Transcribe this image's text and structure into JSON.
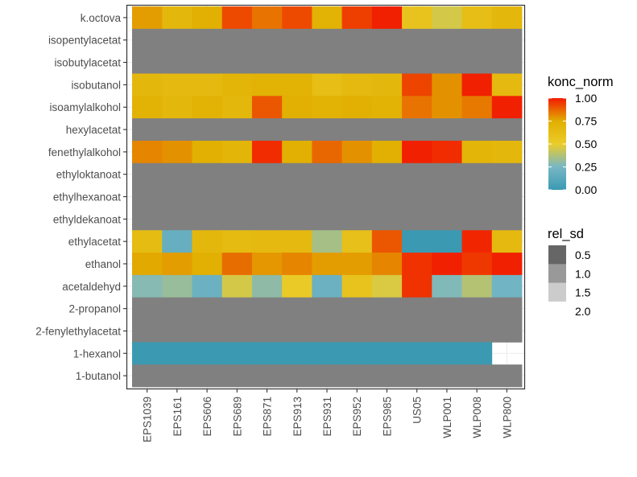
{
  "chart_data": {
    "type": "heatmap",
    "title": "",
    "xlabel": "",
    "ylabel": "",
    "x_categories": [
      "EPS1039",
      "EPS161",
      "EPS606",
      "EPS689",
      "EPS871",
      "EPS913",
      "EPS931",
      "EPS952",
      "EPS985",
      "US05",
      "WLP001",
      "WLP008",
      "WLP800"
    ],
    "y_categories": [
      "k.octova",
      "isopentylacetat",
      "isobutylacetat",
      "isobutanol",
      "isoamylalkohol",
      "hexylacetat",
      "fenethylalkohol",
      "ethyloktanoat",
      "ethylhexanoat",
      "ethyldekanoat",
      "ethylacetat",
      "ethanol",
      "acetaldehyd",
      "2-propanol",
      "2-fenylethylacetat",
      "1-hexanol",
      "1-butanol"
    ],
    "na_color": "#808080",
    "konc_norm": [
      [
        0.78,
        0.68,
        0.74,
        0.92,
        0.85,
        0.92,
        0.72,
        0.94,
        0.99,
        0.58,
        0.45,
        0.62,
        0.68
      ],
      [
        null,
        null,
        null,
        null,
        null,
        null,
        null,
        null,
        null,
        null,
        null,
        null,
        null
      ],
      [
        null,
        null,
        null,
        null,
        null,
        null,
        null,
        null,
        null,
        null,
        null,
        null,
        null
      ],
      [
        0.68,
        0.66,
        0.66,
        0.7,
        0.72,
        0.72,
        0.62,
        0.66,
        0.68,
        0.93,
        0.8,
        0.99,
        0.66
      ],
      [
        0.72,
        0.68,
        0.72,
        0.68,
        0.9,
        0.74,
        0.72,
        0.74,
        0.72,
        0.85,
        0.8,
        0.84,
        0.99
      ],
      [
        null,
        null,
        null,
        null,
        null,
        null,
        null,
        null,
        null,
        null,
        null,
        null,
        null
      ],
      [
        0.82,
        0.8,
        0.74,
        0.7,
        0.97,
        0.74,
        0.87,
        0.8,
        0.74,
        0.99,
        0.97,
        0.7,
        0.68
      ],
      [
        null,
        null,
        null,
        null,
        null,
        null,
        null,
        null,
        null,
        null,
        null,
        null,
        null
      ],
      [
        null,
        null,
        null,
        null,
        null,
        null,
        null,
        null,
        null,
        null,
        null,
        null,
        null
      ],
      [
        null,
        null,
        null,
        null,
        null,
        null,
        null,
        null,
        null,
        null,
        null,
        null,
        null
      ],
      [
        0.64,
        0.18,
        0.68,
        0.65,
        0.66,
        0.66,
        0.35,
        0.6,
        0.9,
        0.0,
        0.0,
        0.98,
        0.66
      ],
      [
        0.76,
        0.78,
        0.74,
        0.86,
        0.79,
        0.82,
        0.78,
        0.78,
        0.82,
        0.96,
        0.99,
        0.95,
        0.99
      ],
      [
        0.28,
        0.32,
        0.2,
        0.45,
        0.3,
        0.52,
        0.2,
        0.58,
        0.46,
        0.96,
        0.27,
        0.38,
        0.22
      ],
      [
        null,
        null,
        null,
        null,
        null,
        null,
        null,
        null,
        null,
        null,
        null,
        null,
        null
      ],
      [
        null,
        null,
        null,
        null,
        null,
        null,
        null,
        null,
        null,
        null,
        null,
        null,
        null
      ],
      [
        0.0,
        0.0,
        0.0,
        0.0,
        0.0,
        0.0,
        0.0,
        0.0,
        0.0,
        0.0,
        0.0,
        0.0,
        null
      ],
      [
        null,
        null,
        null,
        null,
        null,
        null,
        null,
        null,
        null,
        null,
        null,
        null,
        null
      ]
    ],
    "color_scale": {
      "title": "konc_norm",
      "limits": [
        0,
        1
      ],
      "breaks": [
        "1.00",
        "0.75",
        "0.50",
        "0.25",
        "0.00"
      ],
      "stops": [
        {
          "v": 0.0,
          "color": "#3B9AB2"
        },
        {
          "v": 0.25,
          "color": "#78B7C5"
        },
        {
          "v": 0.5,
          "color": "#EBCC2A"
        },
        {
          "v": 0.75,
          "color": "#E1AF00"
        },
        {
          "v": 1.0,
          "color": "#F21A00"
        }
      ]
    },
    "size_legend": {
      "title": "rel_sd",
      "breaks": [
        "0.5",
        "1.0",
        "1.5",
        "2.0"
      ],
      "swatch_colors": [
        "#666666",
        "#999999",
        "#cccccc",
        "#ffffff"
      ]
    },
    "legend_position": "right",
    "grid": true
  }
}
